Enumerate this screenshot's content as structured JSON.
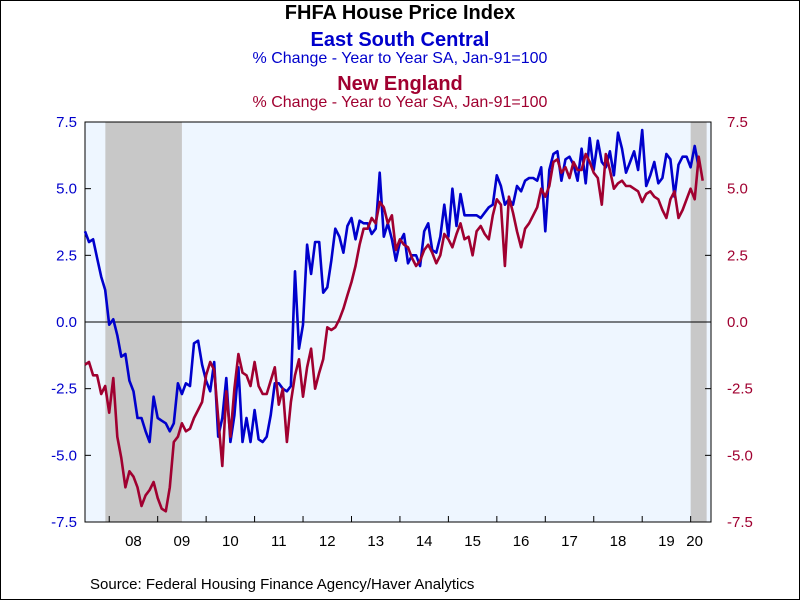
{
  "title": "FHFA House Price Index",
  "series_labels": [
    {
      "name": "East South Central",
      "subtitle": "% Change - Year to Year    SA, Jan-91=100"
    },
    {
      "name": "New England",
      "subtitle": "% Change - Year to Year    SA, Jan-91=100"
    }
  ],
  "source": "Source:  Federal Housing Finance Agency/Haver Analytics",
  "colors": {
    "east_south_central": "#0000cc",
    "new_england": "#a00030",
    "plot_background": "#eef6ff",
    "recession_shading": "#c8c8c8",
    "zero_line": "#000000"
  },
  "chart_data": {
    "type": "line",
    "x_unit": "year",
    "xlim": [
      2007.5,
      2020.42
    ],
    "ylim": [
      -7.5,
      7.5
    ],
    "yticks": [
      -7.5,
      -5.0,
      -2.5,
      0.0,
      2.5,
      5.0,
      7.5
    ],
    "ytick_labels": [
      "-7.5",
      "-5.0",
      "-2.5",
      "0.0",
      "2.5",
      "5.0",
      "7.5"
    ],
    "xtick_labels": [
      {
        "label": "08",
        "year": 2008
      },
      {
        "label": "09",
        "year": 2009
      },
      {
        "label": "10",
        "year": 2010
      },
      {
        "label": "11",
        "year": 2011
      },
      {
        "label": "12",
        "year": 2012
      },
      {
        "label": "13",
        "year": 2013
      },
      {
        "label": "14",
        "year": 2014
      },
      {
        "label": "15",
        "year": 2015
      },
      {
        "label": "16",
        "year": 2016
      },
      {
        "label": "17",
        "year": 2017
      },
      {
        "label": "18",
        "year": 2018
      },
      {
        "label": "19",
        "year": 2019
      },
      {
        "label": "20",
        "year": 2020
      }
    ],
    "recessions": [
      [
        2007.92,
        2009.5
      ],
      [
        2020.0,
        2020.33
      ]
    ],
    "grid": false,
    "dual_axis": true,
    "series": [
      {
        "name": "East South Central",
        "color": "#0000cc",
        "start": 2007.5,
        "step": 0.08333,
        "values": [
          3.4,
          3.0,
          3.1,
          2.4,
          1.7,
          1.2,
          -0.1,
          0.1,
          -0.5,
          -1.3,
          -1.2,
          -2.2,
          -2.6,
          -3.6,
          -3.6,
          -4.1,
          -4.5,
          -2.8,
          -3.6,
          -3.7,
          -3.8,
          -4.1,
          -3.8,
          -2.3,
          -2.7,
          -2.3,
          -2.4,
          -0.8,
          -0.7,
          -1.6,
          -2.2,
          -2.6,
          -1.5,
          -4.3,
          -3.6,
          -2.1,
          -4.5,
          -3.5,
          -1.7,
          -4.5,
          -3.6,
          -4.5,
          -3.3,
          -4.4,
          -4.5,
          -4.3,
          -3.5,
          -2.3,
          -2.3,
          -2.5,
          -2.6,
          -2.4,
          1.9,
          -1.0,
          -0.1,
          2.9,
          1.8,
          3.0,
          3.0,
          1.1,
          1.3,
          2.3,
          3.5,
          3.2,
          2.6,
          3.6,
          3.9,
          3.1,
          3.8,
          3.7,
          3.7,
          3.3,
          3.5,
          5.6,
          3.2,
          3.7,
          3.1,
          2.3,
          3.0,
          3.3,
          2.2,
          2.5,
          2.5,
          2.1,
          3.4,
          3.7,
          2.7,
          2.6,
          3.2,
          4.4,
          3.2,
          5.0,
          3.6,
          4.8,
          4.0,
          4.0,
          4.0,
          4.0,
          3.9,
          4.1,
          4.3,
          4.4,
          5.5,
          5.1,
          4.4,
          4.6,
          4.4,
          5.1,
          4.9,
          5.3,
          5.4,
          5.4,
          5.3,
          5.8,
          3.4,
          5.7,
          6.3,
          6.4,
          5.3,
          6.1,
          6.2,
          5.9,
          5.3,
          6.5,
          5.2,
          6.9,
          5.7,
          6.8,
          6.0,
          5.8,
          6.4,
          5.5,
          7.1,
          6.5,
          5.6,
          6.0,
          6.4,
          5.7,
          7.2,
          5.1,
          5.5,
          6.0,
          5.2,
          5.4,
          6.3,
          6.1,
          4.7,
          5.9,
          6.2,
          6.2,
          5.8,
          6.6,
          5.8
        ]
      },
      {
        "name": "New England",
        "color": "#a00030",
        "start": 2007.5,
        "step": 0.08333,
        "values": [
          -1.6,
          -1.5,
          -2.0,
          -2.0,
          -2.7,
          -2.4,
          -3.4,
          -2.1,
          -4.3,
          -5.1,
          -6.2,
          -5.6,
          -5.8,
          -6.2,
          -6.9,
          -6.5,
          -6.3,
          -6.0,
          -6.6,
          -7.0,
          -7.1,
          -6.2,
          -4.5,
          -4.3,
          -3.8,
          -4.1,
          -4.0,
          -3.6,
          -3.3,
          -3.0,
          -2.0,
          -1.5,
          -1.8,
          -3.6,
          -5.4,
          -2.6,
          -4.3,
          -2.5,
          -1.2,
          -1.9,
          -2.0,
          -2.4,
          -1.5,
          -2.4,
          -2.7,
          -2.7,
          -2.2,
          -1.7,
          -3.1,
          -2.5,
          -4.5,
          -3.0,
          -2.0,
          -1.4,
          -2.8,
          -1.7,
          -1.0,
          -2.5,
          -1.9,
          -1.4,
          -0.2,
          -0.3,
          -0.2,
          0.1,
          0.5,
          1.0,
          1.5,
          2.1,
          2.9,
          3.5,
          3.5,
          3.9,
          3.7,
          4.5,
          4.3,
          3.7,
          4.0,
          2.7,
          3.1,
          2.9,
          2.8,
          2.4,
          2.1,
          2.3,
          2.7,
          2.9,
          2.6,
          2.2,
          2.5,
          3.3,
          3.1,
          2.8,
          3.3,
          3.7,
          3.1,
          3.2,
          2.5,
          3.4,
          3.6,
          3.3,
          3.1,
          4.0,
          4.6,
          4.4,
          2.1,
          4.7,
          4.1,
          3.4,
          2.8,
          3.5,
          3.7,
          4.0,
          4.3,
          5.0,
          4.7,
          5.1,
          6.0,
          6.1,
          5.6,
          5.8,
          5.4,
          6.0,
          5.7,
          5.7,
          6.3,
          6.0,
          5.6,
          5.4,
          4.4,
          6.3,
          5.7,
          5.0,
          5.2,
          5.3,
          5.1,
          5.1,
          5.0,
          4.9,
          4.5,
          4.8,
          4.9,
          4.7,
          4.6,
          4.2,
          3.9,
          4.6,
          4.9,
          3.9,
          4.2,
          4.6,
          5.0,
          4.6,
          6.2,
          5.3
        ]
      }
    ]
  }
}
